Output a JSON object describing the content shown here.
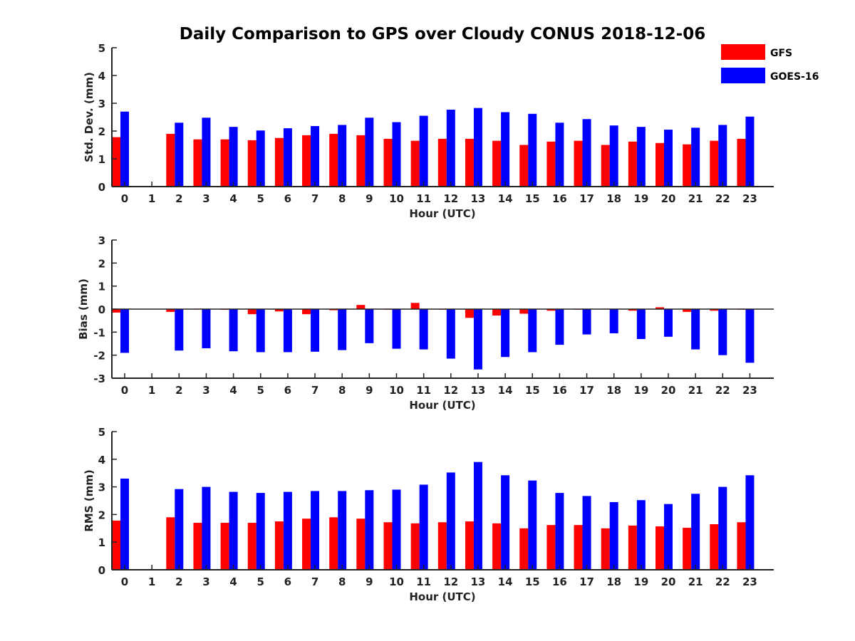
{
  "title": "Daily Comparison to GPS over Cloudy CONUS 2018-12-06",
  "colors": {
    "GFS": "#ff0000",
    "GOES-16": "#0000ff",
    "axis": "#222222"
  },
  "legend": {
    "position": "top-right",
    "entries": [
      "GFS",
      "GOES-16"
    ]
  },
  "chart_data": [
    {
      "type": "bar",
      "ylabel": "Std. Dev. (mm)",
      "xlabel": "Hour (UTC)",
      "ylim": [
        0,
        5
      ],
      "yticks": [
        0,
        1,
        2,
        3,
        4,
        5
      ],
      "categories": [
        "0",
        "1",
        "2",
        "3",
        "4",
        "5",
        "6",
        "7",
        "8",
        "9",
        "10",
        "11",
        "12",
        "13",
        "14",
        "15",
        "16",
        "17",
        "18",
        "19",
        "20",
        "21",
        "22",
        "23"
      ],
      "series": [
        {
          "name": "GFS",
          "values": [
            1.78,
            null,
            1.9,
            1.7,
            1.7,
            1.67,
            1.75,
            1.85,
            1.9,
            1.85,
            1.72,
            1.65,
            1.72,
            1.72,
            1.65,
            1.5,
            1.62,
            1.65,
            1.5,
            1.62,
            1.57,
            1.52,
            1.65,
            1.72
          ]
        },
        {
          "name": "GOES-16",
          "values": [
            2.7,
            null,
            2.3,
            2.48,
            2.15,
            2.02,
            2.1,
            2.18,
            2.22,
            2.48,
            2.32,
            2.55,
            2.77,
            2.83,
            2.68,
            2.62,
            2.3,
            2.43,
            2.2,
            2.15,
            2.05,
            2.12,
            2.22,
            2.52
          ]
        }
      ]
    },
    {
      "type": "bar",
      "ylabel": "Bias (mm)",
      "xlabel": "Hour (UTC)",
      "ylim": [
        -3,
        3
      ],
      "yticks": [
        -3,
        -2,
        -1,
        0,
        1,
        2,
        3
      ],
      "categories": [
        "0",
        "1",
        "2",
        "3",
        "4",
        "5",
        "6",
        "7",
        "8",
        "9",
        "10",
        "11",
        "12",
        "13",
        "14",
        "15",
        "16",
        "17",
        "18",
        "19",
        "20",
        "21",
        "22",
        "23"
      ],
      "series": [
        {
          "name": "GFS",
          "values": [
            -0.15,
            null,
            -0.12,
            0.02,
            -0.03,
            -0.22,
            -0.1,
            -0.22,
            -0.05,
            0.18,
            -0.02,
            0.27,
            -0.02,
            -0.38,
            -0.28,
            -0.2,
            -0.07,
            0.0,
            0.02,
            -0.07,
            0.08,
            -0.12,
            -0.07,
            -0.02
          ]
        },
        {
          "name": "GOES-16",
          "values": [
            -1.9,
            null,
            -1.8,
            -1.7,
            -1.83,
            -1.87,
            -1.87,
            -1.85,
            -1.78,
            -1.48,
            -1.72,
            -1.75,
            -2.15,
            -2.62,
            -2.08,
            -1.87,
            -1.55,
            -1.1,
            -1.05,
            -1.3,
            -1.2,
            -1.75,
            -2.0,
            -2.33
          ]
        }
      ]
    },
    {
      "type": "bar",
      "ylabel": "RMS (mm)",
      "xlabel": "Hour (UTC)",
      "ylim": [
        0,
        5
      ],
      "yticks": [
        0,
        1,
        2,
        3,
        4,
        5
      ],
      "categories": [
        "0",
        "1",
        "2",
        "3",
        "4",
        "5",
        "6",
        "7",
        "8",
        "9",
        "10",
        "11",
        "12",
        "13",
        "14",
        "15",
        "16",
        "17",
        "18",
        "19",
        "20",
        "21",
        "22",
        "23"
      ],
      "series": [
        {
          "name": "GFS",
          "values": [
            1.78,
            null,
            1.9,
            1.7,
            1.7,
            1.7,
            1.75,
            1.85,
            1.9,
            1.85,
            1.72,
            1.68,
            1.72,
            1.75,
            1.68,
            1.5,
            1.62,
            1.62,
            1.5,
            1.6,
            1.57,
            1.52,
            1.65,
            1.72
          ]
        },
        {
          "name": "GOES-16",
          "values": [
            3.3,
            null,
            2.92,
            3.0,
            2.82,
            2.78,
            2.82,
            2.85,
            2.85,
            2.88,
            2.9,
            3.08,
            3.52,
            3.9,
            3.42,
            3.23,
            2.78,
            2.67,
            2.45,
            2.52,
            2.38,
            2.75,
            3.0,
            3.42
          ]
        }
      ]
    }
  ]
}
